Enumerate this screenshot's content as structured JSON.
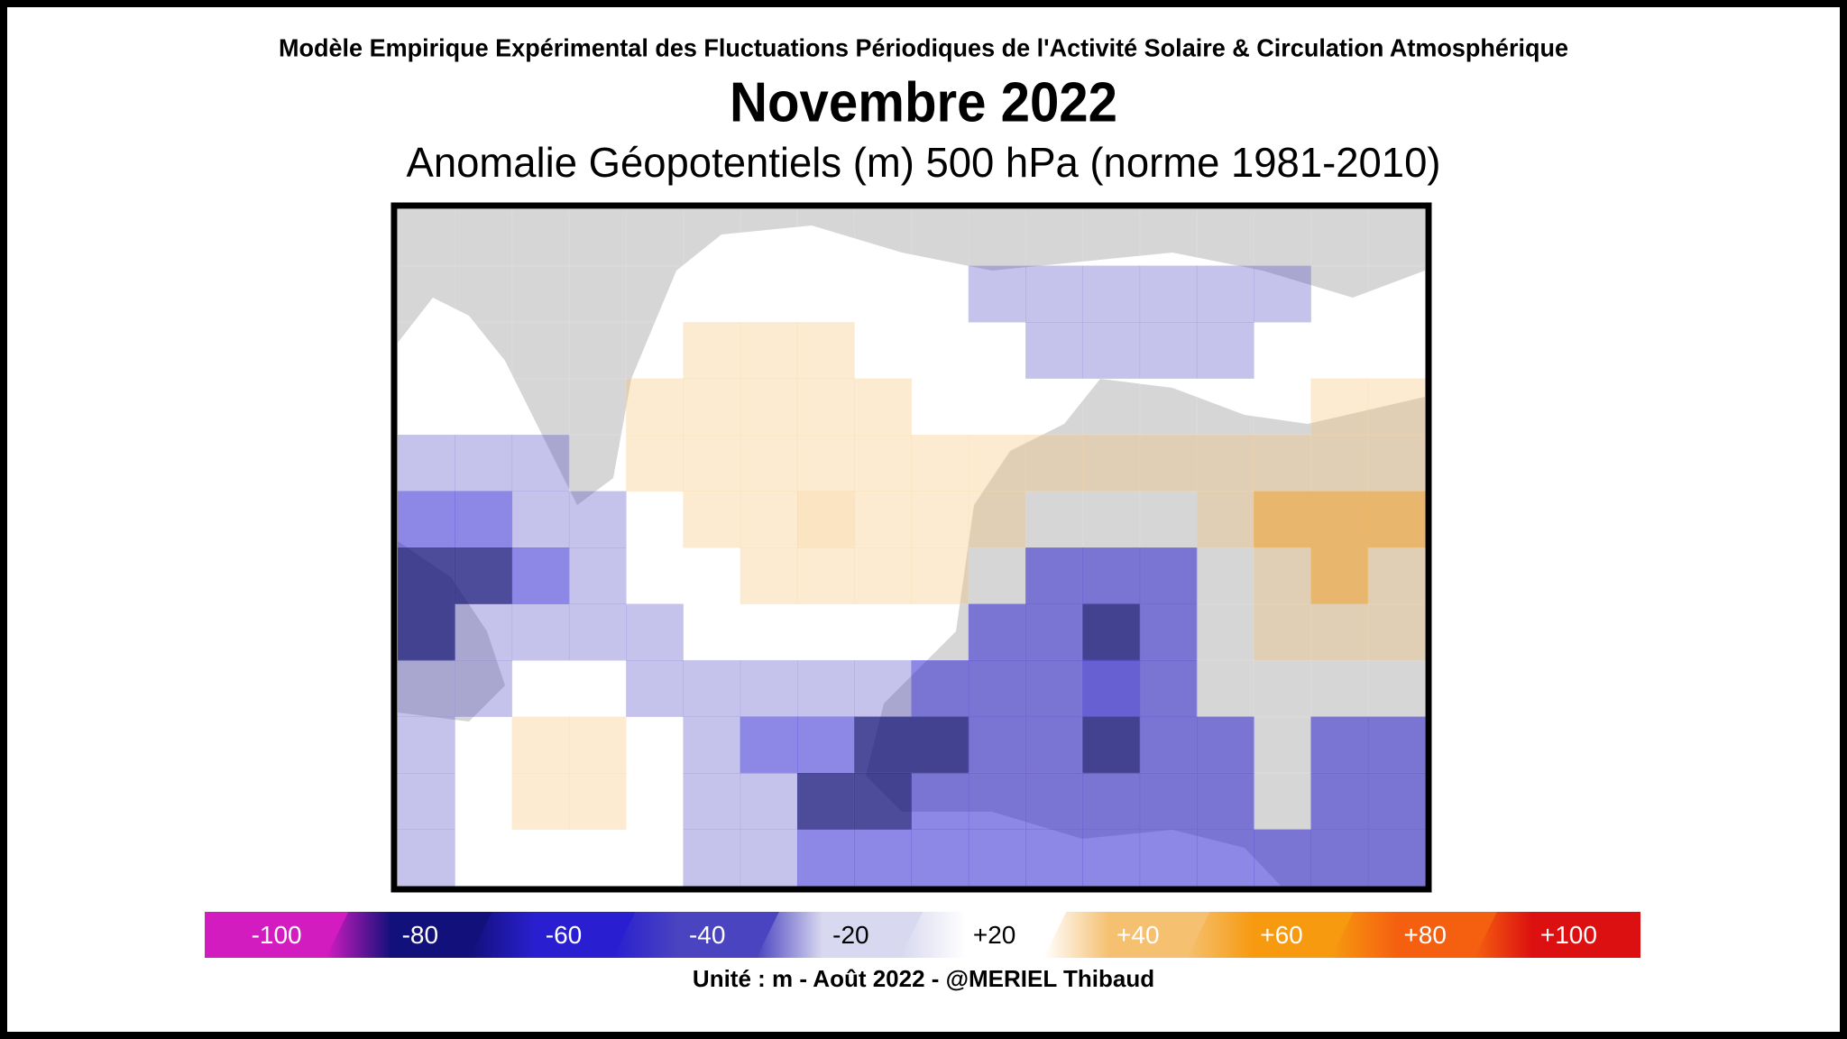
{
  "header": {
    "line1": "Modèle Empirique Expérimental des Fluctuations Périodiques de l'Activité Solaire & Circulation Atmosphérique",
    "title": "Novembre 2022",
    "subtitle": "Anomalie Géopotentiels (m) 500 hPa (norme 1981-2010)"
  },
  "map": {
    "grid": [
      [
        0,
        0,
        0,
        0,
        0,
        0,
        0,
        0,
        0,
        0,
        0,
        0,
        0,
        0,
        0,
        0,
        0,
        0
      ],
      [
        0,
        0,
        0,
        0,
        0,
        0,
        0,
        0,
        0,
        0,
        -30,
        -30,
        -30,
        -30,
        -30,
        -30,
        0,
        0
      ],
      [
        0,
        0,
        0,
        0,
        0,
        30,
        30,
        30,
        0,
        0,
        0,
        -30,
        -30,
        -30,
        -30,
        0,
        0,
        0
      ],
      [
        0,
        0,
        0,
        0,
        30,
        30,
        30,
        30,
        30,
        0,
        0,
        0,
        0,
        0,
        0,
        0,
        30,
        30
      ],
      [
        -30,
        -30,
        -30,
        0,
        30,
        30,
        30,
        30,
        30,
        30,
        30,
        30,
        30,
        30,
        30,
        30,
        30,
        30
      ],
      [
        -50,
        -50,
        -30,
        -30,
        0,
        30,
        30,
        40,
        30,
        30,
        30,
        0,
        0,
        0,
        30,
        50,
        50,
        50
      ],
      [
        -70,
        -70,
        -50,
        -30,
        0,
        0,
        30,
        30,
        30,
        30,
        0,
        -50,
        -50,
        -50,
        0,
        30,
        50,
        30
      ],
      [
        -70,
        -30,
        -30,
        -30,
        -30,
        0,
        0,
        0,
        0,
        0,
        -50,
        -50,
        -70,
        -50,
        0,
        30,
        30,
        30
      ],
      [
        -30,
        -30,
        0,
        0,
        -30,
        -30,
        -30,
        -30,
        -30,
        -50,
        -50,
        -50,
        -60,
        -50,
        0,
        0,
        0,
        0
      ],
      [
        -30,
        0,
        30,
        30,
        0,
        -30,
        -50,
        -50,
        -70,
        -70,
        -50,
        -50,
        -70,
        -50,
        -50,
        0,
        -50,
        -50
      ],
      [
        -30,
        0,
        30,
        30,
        0,
        -30,
        -30,
        -70,
        -70,
        -50,
        -50,
        -50,
        -50,
        -50,
        -50,
        0,
        -50,
        -50
      ],
      [
        -30,
        0,
        0,
        0,
        0,
        -30,
        -30,
        -50,
        -50,
        -50,
        -50,
        -50,
        -50,
        -50,
        -50,
        -50,
        -50,
        -50
      ]
    ]
  },
  "legend": [
    {
      "value": -100,
      "label": "-100",
      "color": "#d21cc0",
      "text_color": "#ffffff"
    },
    {
      "value": -80,
      "label": "-80",
      "color": "#12107a",
      "text_color": "#ffffff"
    },
    {
      "value": -60,
      "label": "-60",
      "color": "#2a1fd0",
      "text_color": "#ffffff"
    },
    {
      "value": -40,
      "label": "-40",
      "color": "#4a44c0",
      "text_color": "#ffffff"
    },
    {
      "value": -20,
      "label": "-20",
      "color": "#d8d8f0",
      "text_color": "#000000"
    },
    {
      "value": 20,
      "label": "+20",
      "color": "#ffffff",
      "text_color": "#000000"
    },
    {
      "value": 40,
      "label": "+40",
      "color": "#f5c070",
      "text_color": "#ffffff"
    },
    {
      "value": 60,
      "label": "+60",
      "color": "#f79a10",
      "text_color": "#ffffff"
    },
    {
      "value": 80,
      "label": "+80",
      "color": "#f56010",
      "text_color": "#ffffff"
    },
    {
      "value": 100,
      "label": "+100",
      "color": "#dc1010",
      "text_color": "#ffffff"
    }
  ],
  "footer": "Unité : m - Août 2022 - @MERIEL Thibaud"
}
